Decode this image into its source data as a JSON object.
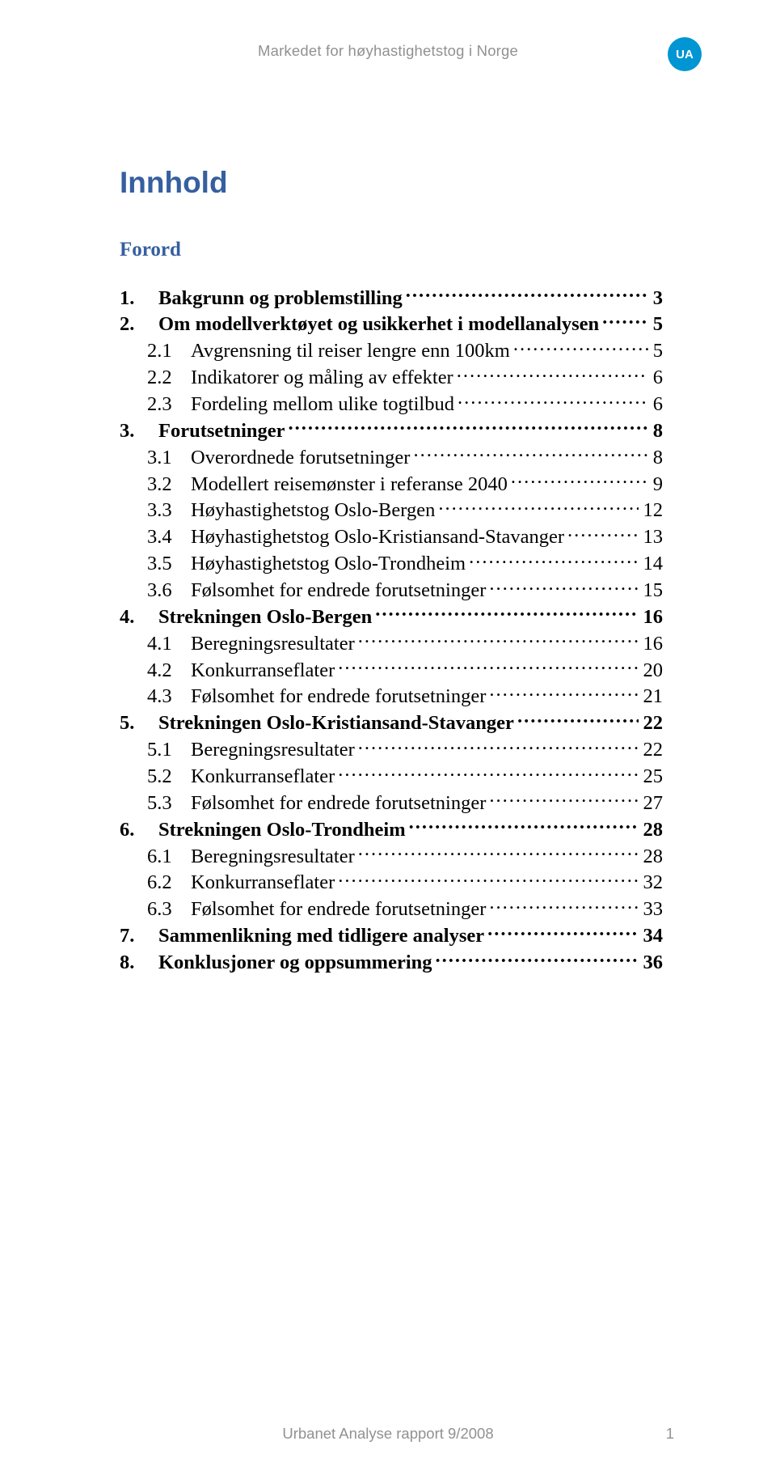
{
  "header": {
    "running_title": "Markedet for høyhastighetstog i Norge",
    "badge": "UA"
  },
  "title": "Innhold",
  "forord": "Forord",
  "toc": [
    {
      "level": 1,
      "num": "1.",
      "label": "Bakgrunn og problemstilling",
      "page": "3"
    },
    {
      "level": 1,
      "num": "2.",
      "label": "Om modellverktøyet og usikkerhet i modellanalysen",
      "page": "5"
    },
    {
      "level": 2,
      "num": "2.1",
      "label": "Avgrensning til reiser lengre enn 100km",
      "page": "5"
    },
    {
      "level": 2,
      "num": "2.2",
      "label": "Indikatorer og måling av effekter",
      "page": "6"
    },
    {
      "level": 2,
      "num": "2.3",
      "label": "Fordeling mellom ulike togtilbud",
      "page": "6"
    },
    {
      "level": 1,
      "num": "3.",
      "label": "Forutsetninger",
      "page": "8"
    },
    {
      "level": 2,
      "num": "3.1",
      "label": "Overordnede forutsetninger",
      "page": "8"
    },
    {
      "level": 2,
      "num": "3.2",
      "label": "Modellert reisemønster i referanse 2040",
      "page": "9"
    },
    {
      "level": 2,
      "num": "3.3",
      "label": "Høyhastighetstog Oslo-Bergen",
      "page": "12"
    },
    {
      "level": 2,
      "num": "3.4",
      "label": "Høyhastighetstog Oslo-Kristiansand-Stavanger",
      "page": "13"
    },
    {
      "level": 2,
      "num": "3.5",
      "label": "Høyhastighetstog Oslo-Trondheim",
      "page": "14"
    },
    {
      "level": 2,
      "num": "3.6",
      "label": "Følsomhet for endrede forutsetninger",
      "page": "15"
    },
    {
      "level": 1,
      "num": "4.",
      "label": "Strekningen Oslo-Bergen",
      "page": "16"
    },
    {
      "level": 2,
      "num": "4.1",
      "label": "Beregningsresultater",
      "page": "16"
    },
    {
      "level": 2,
      "num": "4.2",
      "label": "Konkurranseflater",
      "page": "20"
    },
    {
      "level": 2,
      "num": "4.3",
      "label": "Følsomhet for endrede forutsetninger",
      "page": "21"
    },
    {
      "level": 1,
      "num": "5.",
      "label": "Strekningen Oslo-Kristiansand-Stavanger",
      "page": "22"
    },
    {
      "level": 2,
      "num": "5.1",
      "label": "Beregningsresultater",
      "page": "22"
    },
    {
      "level": 2,
      "num": "5.2",
      "label": "Konkurranseflater",
      "page": "25"
    },
    {
      "level": 2,
      "num": "5.3",
      "label": "Følsomhet for endrede forutsetninger",
      "page": "27"
    },
    {
      "level": 1,
      "num": "6.",
      "label": "Strekningen Oslo-Trondheim",
      "page": "28"
    },
    {
      "level": 2,
      "num": "6.1",
      "label": "Beregningsresultater",
      "page": "28"
    },
    {
      "level": 2,
      "num": "6.2",
      "label": "Konkurranseflater",
      "page": "32"
    },
    {
      "level": 2,
      "num": "6.3",
      "label": "Følsomhet for endrede forutsetninger",
      "page": "33"
    },
    {
      "level": 1,
      "num": "7.",
      "label": "Sammenlikning med tidligere analyser",
      "page": "34"
    },
    {
      "level": 1,
      "num": "8.",
      "label": "Konklusjoner og oppsummering",
      "page": "36"
    }
  ],
  "footer": {
    "center": "Urbanet Analyse rapport 9/2008",
    "page_number": "1"
  },
  "colors": {
    "heading_blue": "#365fa0",
    "badge_blue": "#0095d3",
    "gray_text": "#919191",
    "body_text": "#000000",
    "background": "#ffffff"
  },
  "typography": {
    "header_family": "Arial",
    "body_family": "Garamond",
    "title_size_pt": 28,
    "forord_size_pt": 19,
    "toc_size_pt": 18,
    "running_head_size_pt": 14
  }
}
